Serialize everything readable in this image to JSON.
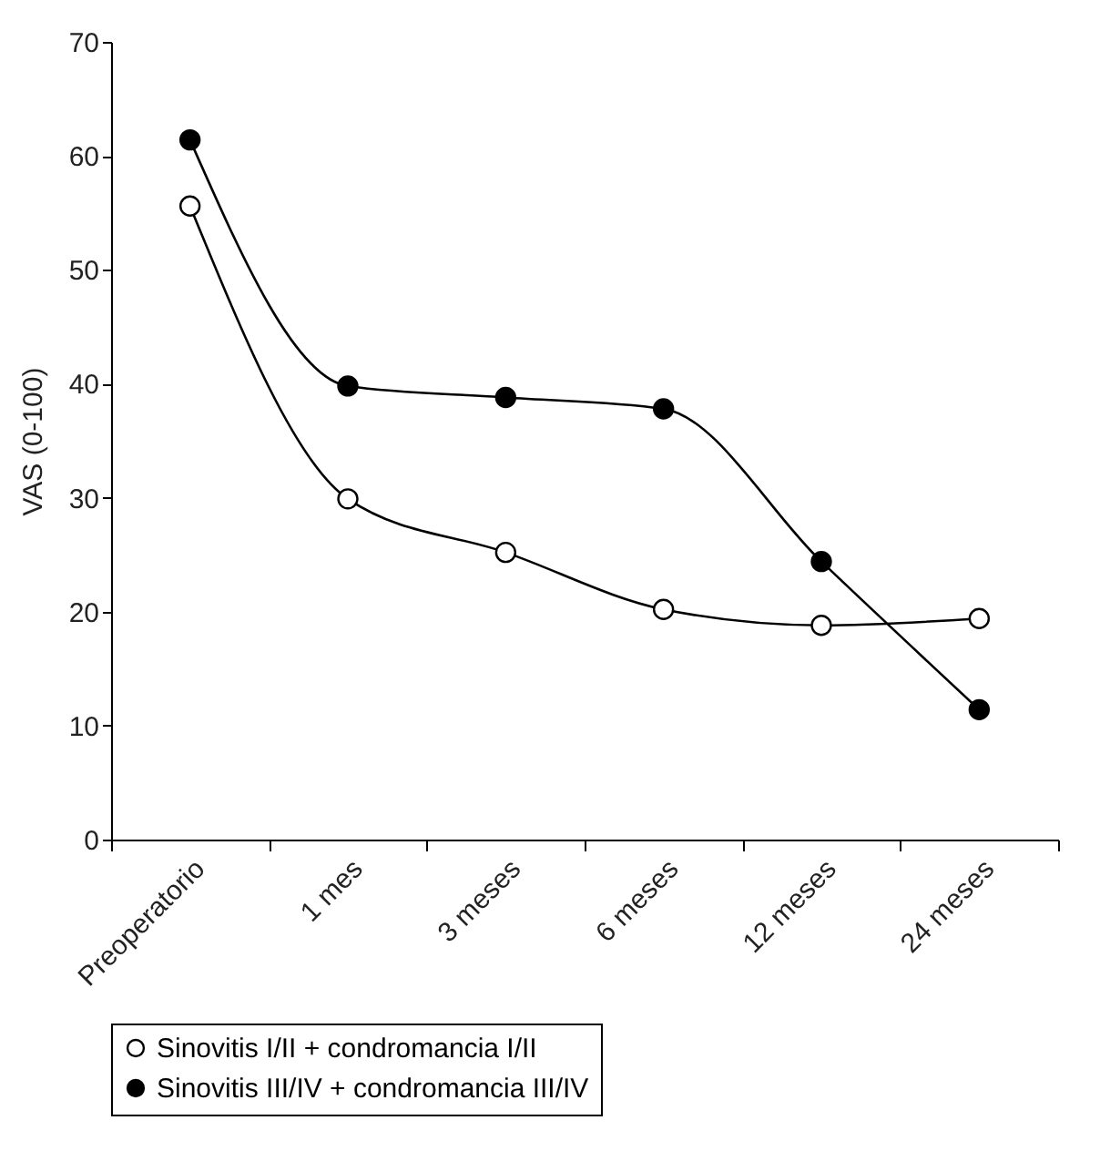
{
  "chart_data": {
    "type": "line",
    "ylabel": "VAS (0-100)",
    "categories": [
      "Preoperatorio",
      "1 mes",
      "3 meses",
      "6 meses",
      "12 meses",
      "24 meses"
    ],
    "series": [
      {
        "name": "Sinovitis I/II + condromancia I/II",
        "color": "#000000",
        "values": [
          55.6,
          29.9,
          25.2,
          20.2,
          18.8,
          19.4
        ]
      },
      {
        "name": "Sinovitis III/IV + condromancia III/IV",
        "color": "#000000",
        "values": [
          61.4,
          39.8,
          38.8,
          37.8,
          24.4,
          11.4
        ]
      }
    ],
    "ylim": [
      0,
      70
    ],
    "yticks": [
      0,
      10,
      20,
      30,
      40,
      50,
      60,
      70
    ],
    "marker": "circle",
    "legend": "bottom",
    "grid": false
  }
}
